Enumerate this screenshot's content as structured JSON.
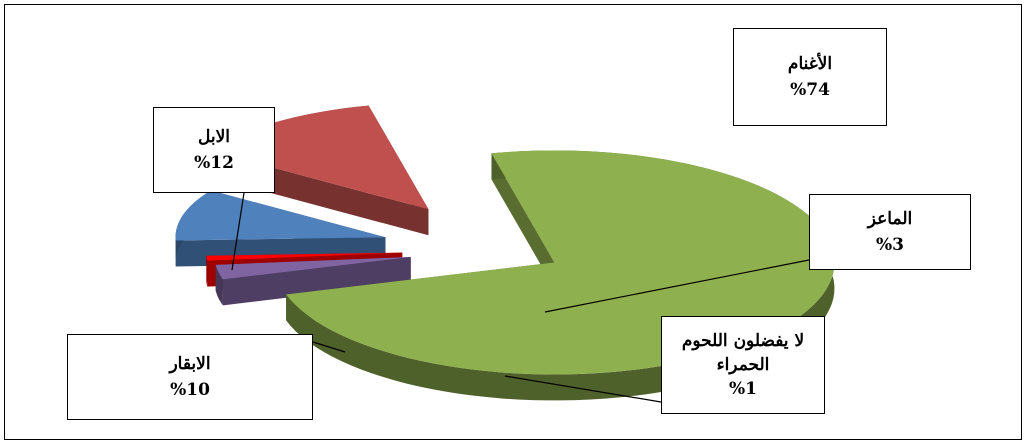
{
  "chart_data": {
    "type": "pie",
    "style": "3d-exploded",
    "legend": "none",
    "slices": [
      {
        "key": "sheep",
        "label": "الأغنام",
        "value": 74,
        "value_label": "%74",
        "color": "#8fb04e"
      },
      {
        "key": "goats",
        "label": "الماعز",
        "value": 3,
        "value_label": "%3",
        "color": "#8064a2"
      },
      {
        "key": "none",
        "label": "لا يفضلون اللحوم الحمراء",
        "value": 1,
        "value_label": "%1",
        "color": "#ff0000"
      },
      {
        "key": "cattle",
        "label": "الابقار",
        "value": 10,
        "value_label": "%10",
        "color": "#4f81bd"
      },
      {
        "key": "camels",
        "label": "الابل",
        "value": 12,
        "value_label": "%12",
        "color": "#c0504d"
      }
    ]
  },
  "labels": {
    "sheep": {
      "name": "الأغنام",
      "value": "%74"
    },
    "goats": {
      "name": "الماعز",
      "value": "%3"
    },
    "none": {
      "name_line1": "لا يفضلون اللحوم",
      "name_line2": "الحمراء",
      "value": "%1"
    },
    "cattle": {
      "name": "الابقار",
      "value": "%10"
    },
    "camels": {
      "name": "الابل",
      "value": "%12"
    }
  }
}
